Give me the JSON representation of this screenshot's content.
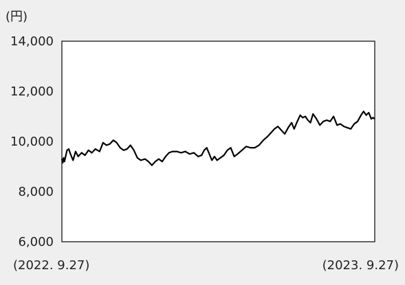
{
  "chart_data": {
    "type": "line",
    "unit_label": "(円)",
    "ylim": [
      6000,
      14000
    ],
    "yticks": [
      {
        "value": 6000,
        "label": "6,000"
      },
      {
        "value": 8000,
        "label": "8,000"
      },
      {
        "value": 10000,
        "label": "10,000"
      },
      {
        "value": 12000,
        "label": "12,000"
      },
      {
        "value": 14000,
        "label": "14,000"
      }
    ],
    "x_start_label": "(2022. 9.27)",
    "x_end_label": "(2023. 9.27)",
    "x_start": "2022-09-27",
    "x_end": "2023-09-27",
    "grid": false,
    "series": [
      {
        "color": "#000000",
        "points": [
          [
            "2022-09-27",
            9300
          ],
          [
            "2022-09-28",
            9150
          ],
          [
            "2022-09-29",
            9350
          ],
          [
            "2022-09-30",
            9200
          ],
          [
            "2022-10-03",
            9650
          ],
          [
            "2022-10-05",
            9700
          ],
          [
            "2022-10-07",
            9500
          ],
          [
            "2022-10-10",
            9250
          ],
          [
            "2022-10-13",
            9600
          ],
          [
            "2022-10-16",
            9400
          ],
          [
            "2022-10-20",
            9550
          ],
          [
            "2022-10-24",
            9450
          ],
          [
            "2022-10-28",
            9650
          ],
          [
            "2022-11-01",
            9550
          ],
          [
            "2022-11-05",
            9700
          ],
          [
            "2022-11-10",
            9600
          ],
          [
            "2022-11-14",
            9950
          ],
          [
            "2022-11-18",
            9850
          ],
          [
            "2022-11-22",
            9900
          ],
          [
            "2022-11-26",
            10050
          ],
          [
            "2022-11-30",
            9950
          ],
          [
            "2022-12-04",
            9750
          ],
          [
            "2022-12-08",
            9650
          ],
          [
            "2022-12-12",
            9700
          ],
          [
            "2022-12-16",
            9850
          ],
          [
            "2022-12-20",
            9650
          ],
          [
            "2022-12-24",
            9350
          ],
          [
            "2022-12-28",
            9250
          ],
          [
            "2023-01-02",
            9300
          ],
          [
            "2023-01-06",
            9200
          ],
          [
            "2023-01-10",
            9050
          ],
          [
            "2023-01-14",
            9200
          ],
          [
            "2023-01-18",
            9300
          ],
          [
            "2023-01-22",
            9200
          ],
          [
            "2023-01-26",
            9400
          ],
          [
            "2023-01-30",
            9550
          ],
          [
            "2023-02-03",
            9600
          ],
          [
            "2023-02-08",
            9600
          ],
          [
            "2023-02-13",
            9550
          ],
          [
            "2023-02-18",
            9600
          ],
          [
            "2023-02-23",
            9500
          ],
          [
            "2023-02-28",
            9550
          ],
          [
            "2023-03-05",
            9400
          ],
          [
            "2023-03-09",
            9450
          ],
          [
            "2023-03-12",
            9650
          ],
          [
            "2023-03-15",
            9750
          ],
          [
            "2023-03-18",
            9500
          ],
          [
            "2023-03-21",
            9250
          ],
          [
            "2023-03-24",
            9400
          ],
          [
            "2023-03-27",
            9250
          ],
          [
            "2023-03-31",
            9350
          ],
          [
            "2023-04-04",
            9450
          ],
          [
            "2023-04-08",
            9650
          ],
          [
            "2023-04-12",
            9750
          ],
          [
            "2023-04-16",
            9400
          ],
          [
            "2023-04-20",
            9500
          ],
          [
            "2023-04-25",
            9650
          ],
          [
            "2023-04-30",
            9800
          ],
          [
            "2023-05-05",
            9750
          ],
          [
            "2023-05-10",
            9750
          ],
          [
            "2023-05-15",
            9850
          ],
          [
            "2023-05-20",
            10050
          ],
          [
            "2023-05-25",
            10200
          ],
          [
            "2023-05-29",
            10350
          ],
          [
            "2023-06-02",
            10500
          ],
          [
            "2023-06-06",
            10600
          ],
          [
            "2023-06-10",
            10450
          ],
          [
            "2023-06-14",
            10300
          ],
          [
            "2023-06-18",
            10550
          ],
          [
            "2023-06-22",
            10750
          ],
          [
            "2023-06-25",
            10500
          ],
          [
            "2023-06-28",
            10750
          ],
          [
            "2023-07-02",
            11050
          ],
          [
            "2023-07-05",
            10950
          ],
          [
            "2023-07-08",
            11000
          ],
          [
            "2023-07-11",
            10850
          ],
          [
            "2023-07-14",
            10750
          ],
          [
            "2023-07-17",
            11100
          ],
          [
            "2023-07-21",
            10900
          ],
          [
            "2023-07-25",
            10650
          ],
          [
            "2023-07-29",
            10800
          ],
          [
            "2023-08-02",
            10850
          ],
          [
            "2023-08-06",
            10800
          ],
          [
            "2023-08-10",
            11000
          ],
          [
            "2023-08-14",
            10650
          ],
          [
            "2023-08-18",
            10700
          ],
          [
            "2023-08-22",
            10600
          ],
          [
            "2023-08-26",
            10550
          ],
          [
            "2023-08-30",
            10500
          ],
          [
            "2023-09-03",
            10700
          ],
          [
            "2023-09-07",
            10800
          ],
          [
            "2023-09-11",
            11050
          ],
          [
            "2023-09-14",
            11200
          ],
          [
            "2023-09-17",
            11050
          ],
          [
            "2023-09-20",
            11150
          ],
          [
            "2023-09-23",
            10900
          ],
          [
            "2023-09-25",
            10950
          ],
          [
            "2023-09-27",
            10900
          ]
        ]
      }
    ]
  }
}
